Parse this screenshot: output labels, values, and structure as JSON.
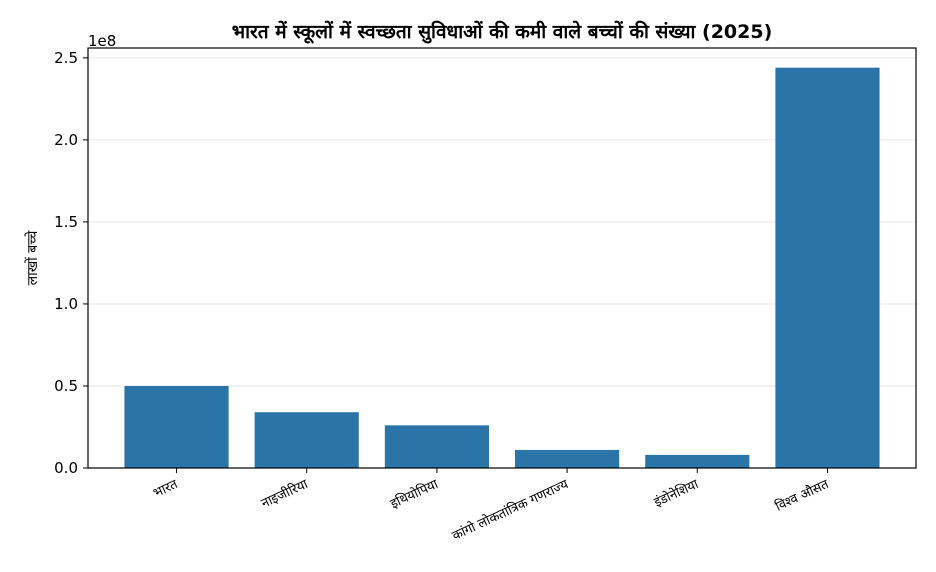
{
  "chart_data": {
    "type": "bar",
    "title": "भारत में स्कूलों में स्वच्छता सुविधाओं की कमी वाले बच्चों की संख्या (2025)",
    "xlabel": "",
    "ylabel": "लाखों बच्चे",
    "y_offset_text": "1e8",
    "categories": [
      "भारत",
      "नाइजीरिया",
      "इथियोपिया",
      "कांगो लोकतांत्रिक गणराज्य",
      "इंडोनेशिया",
      "विश्व औसत"
    ],
    "values": [
      50000000,
      34000000,
      26000000,
      11000000,
      8000000,
      244000000
    ],
    "ylim": [
      0,
      256000000
    ],
    "yticks": [
      0,
      50000000,
      100000000,
      150000000,
      200000000,
      250000000
    ],
    "ytick_labels": [
      "0.0",
      "0.5",
      "1.0",
      "1.5",
      "2.0",
      "2.5"
    ],
    "grid": "y",
    "bar_color": "#2a74a8",
    "grid_color": "#e6e6e6"
  }
}
